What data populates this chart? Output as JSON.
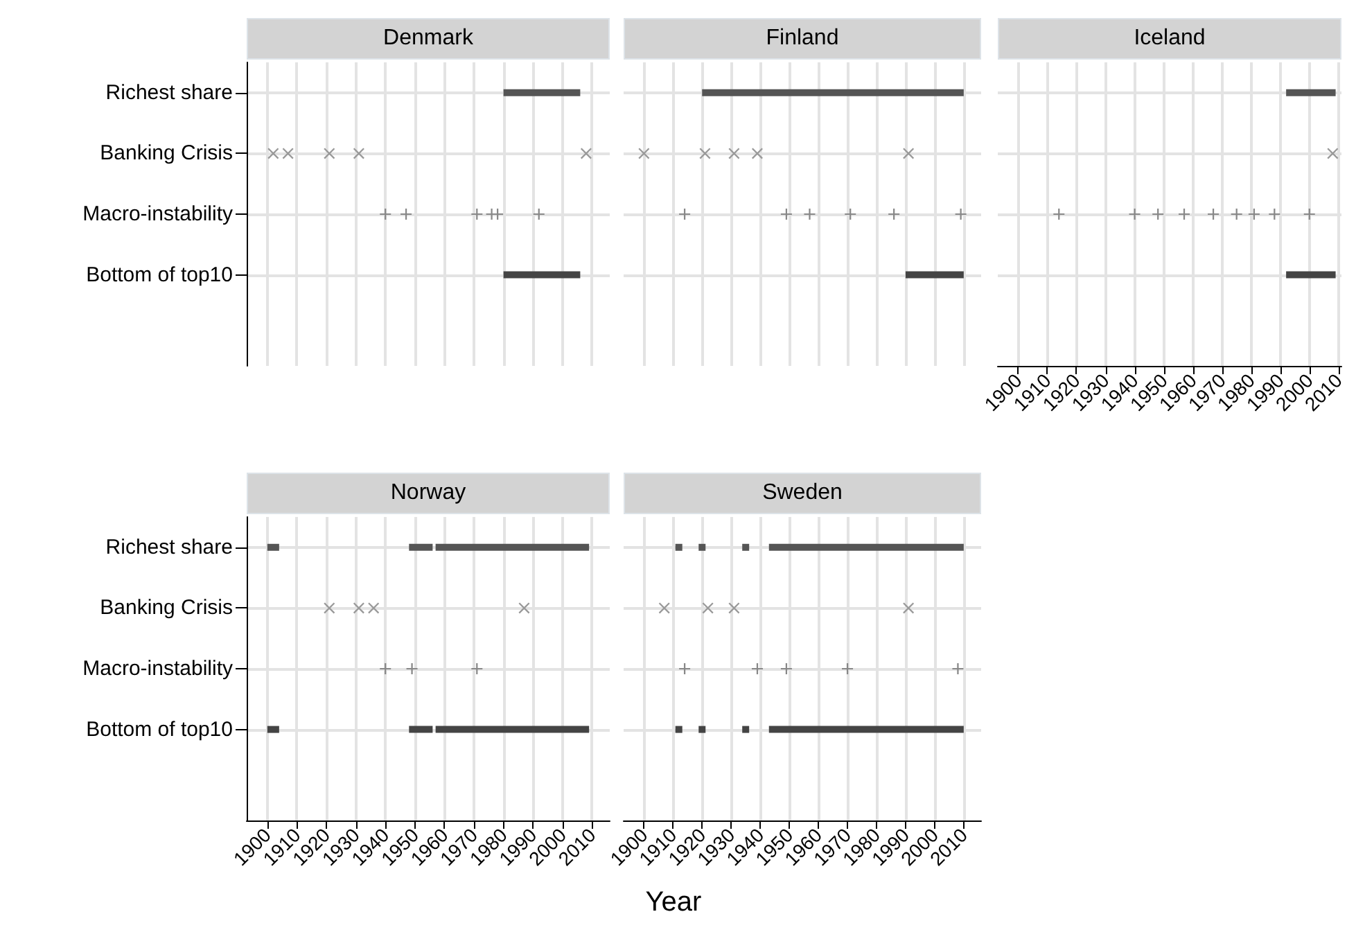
{
  "chart_data": [
    {
      "type": "line",
      "title": "Denmark",
      "orientation": "horizontal",
      "categories": [
        "Richest share",
        "Banking Crisis",
        "Macro-instability",
        "Bottom of top10",
        null
      ],
      "xlim": [
        1893,
        2016
      ],
      "xticks": [
        1900,
        1910,
        1920,
        1930,
        1940,
        1950,
        1960,
        1970,
        1980,
        1990,
        2000,
        2010
      ],
      "grid": true,
      "tick_labels": "y",
      "series": [
        {
          "color": "#555555",
          "x": [
            "Richest share",
            "Richest share"
          ],
          "values": [
            1980,
            2006
          ]
        },
        {
          "type": "scatter",
          "marker": "x",
          "color": "#999999",
          "x": [
            "Banking Crisis",
            "Banking Crisis",
            "Banking Crisis",
            "Banking Crisis",
            "Banking Crisis"
          ],
          "values": [
            1902,
            1907,
            1921,
            1931,
            2008
          ]
        },
        {
          "type": "scatter",
          "marker": "cross",
          "color": "#888888",
          "x": [
            "Macro-instability",
            "Macro-instability",
            "Macro-instability",
            "Macro-instability",
            "Macro-instability",
            "Macro-instability"
          ],
          "values": [
            1940,
            1947,
            1971,
            1976,
            1978,
            1992
          ]
        },
        {
          "color": "#444444",
          "x": [
            "Bottom of top10",
            "Bottom of top10"
          ],
          "values": [
            1980,
            2006
          ]
        }
      ]
    },
    {
      "type": "line",
      "title": "Finland",
      "orientation": "horizontal",
      "categories": [
        "Richest share",
        "Banking Crisis",
        "Macro-instability",
        "Bottom of top10",
        null
      ],
      "xlim": [
        1893,
        2016
      ],
      "xticks": [
        1900,
        1910,
        1920,
        1930,
        1940,
        1950,
        1960,
        1970,
        1980,
        1990,
        2000,
        2010
      ],
      "grid": true,
      "tick_labels": false,
      "series": [
        {
          "color": "#555555",
          "x": [
            "Richest share",
            "Richest share"
          ],
          "values": [
            1920,
            2010
          ]
        },
        {
          "type": "scatter",
          "marker": "x",
          "color": "#999999",
          "x": [
            "Banking Crisis",
            "Banking Crisis",
            "Banking Crisis",
            "Banking Crisis",
            "Banking Crisis"
          ],
          "values": [
            1900,
            1921,
            1931,
            1939,
            1991
          ]
        },
        {
          "type": "scatter",
          "marker": "cross",
          "color": "#888888",
          "x": [
            "Macro-instability",
            "Macro-instability",
            "Macro-instability",
            "Macro-instability",
            "Macro-instability",
            "Macro-instability"
          ],
          "values": [
            1914,
            1949,
            1957,
            1971,
            1986,
            2009
          ]
        },
        {
          "color": "#444444",
          "x": [
            "Bottom of top10",
            "Bottom of top10"
          ],
          "values": [
            1990,
            2010
          ]
        }
      ]
    },
    {
      "type": "line",
      "title": "Iceland",
      "orientation": "horizontal",
      "categories": [
        "Richest share",
        "Banking Crisis",
        "Macro-instability",
        "Bottom of top10",
        null
      ],
      "xlim": [
        1893,
        2011
      ],
      "xticks": [
        1900,
        1910,
        1920,
        1930,
        1940,
        1950,
        1960,
        1970,
        1980,
        1990,
        2000,
        2010
      ],
      "grid": true,
      "tick_labels": "x",
      "series": [
        {
          "color": "#555555",
          "x": [
            "Richest share",
            "Richest share"
          ],
          "values": [
            1992,
            2009
          ]
        },
        {
          "type": "scatter",
          "marker": "x",
          "color": "#999999",
          "x": [
            "Banking Crisis"
          ],
          "values": [
            2008
          ]
        },
        {
          "type": "scatter",
          "marker": "cross",
          "color": "#888888",
          "x": [
            "Macro-instability",
            "Macro-instability",
            "Macro-instability",
            "Macro-instability",
            "Macro-instability",
            "Macro-instability",
            "Macro-instability",
            "Macro-instability",
            "Macro-instability"
          ],
          "values": [
            1914,
            1940,
            1948,
            1957,
            1967,
            1975,
            1981,
            1988,
            2000
          ]
        },
        {
          "color": "#444444",
          "x": [
            "Bottom of top10",
            "Bottom of top10"
          ],
          "values": [
            1992,
            2009
          ]
        }
      ]
    },
    {
      "type": "line",
      "title": "Norway",
      "xlabel": "Year",
      "orientation": "horizontal",
      "categories": [
        "Richest share",
        "Banking Crisis",
        "Macro-instability",
        "Bottom of top10",
        null
      ],
      "xlim": [
        1893,
        2016
      ],
      "xticks": [
        1900,
        1910,
        1920,
        1930,
        1940,
        1950,
        1960,
        1970,
        1980,
        1990,
        2000,
        2010
      ],
      "grid": true,
      "series": [
        {
          "color": "#555555",
          "x": [
            "Richest share",
            "Richest share"
          ],
          "values": [
            1900,
            1904
          ]
        },
        {
          "color": "#555555",
          "x": [
            "Richest share",
            "Richest share"
          ],
          "values": [
            1948,
            1956
          ]
        },
        {
          "color": "#555555",
          "x": [
            "Richest share",
            "Richest share"
          ],
          "values": [
            1957,
            2009
          ]
        },
        {
          "type": "scatter",
          "marker": "x",
          "color": "#999999",
          "x": [
            "Banking Crisis",
            "Banking Crisis",
            "Banking Crisis",
            "Banking Crisis"
          ],
          "values": [
            1921,
            1931,
            1936,
            1987
          ]
        },
        {
          "type": "scatter",
          "marker": "cross",
          "color": "#888888",
          "x": [
            "Macro-instability",
            "Macro-instability",
            "Macro-instability"
          ],
          "values": [
            1940,
            1949,
            1971
          ]
        },
        {
          "color": "#444444",
          "x": [
            "Bottom of top10",
            "Bottom of top10"
          ],
          "values": [
            1900,
            1904
          ]
        },
        {
          "color": "#444444",
          "x": [
            "Bottom of top10",
            "Bottom of top10"
          ],
          "values": [
            1948,
            1956
          ]
        },
        {
          "color": "#444444",
          "x": [
            "Bottom of top10",
            "Bottom of top10"
          ],
          "values": [
            1957,
            2009
          ]
        }
      ]
    },
    {
      "type": "line",
      "title": "Sweden",
      "orientation": "horizontal",
      "categories": [
        "Richest share",
        "Banking Crisis",
        "Macro-instability",
        "Bottom of top10",
        null
      ],
      "xlim": [
        1893,
        2016
      ],
      "xticks": [
        1900,
        1910,
        1920,
        1930,
        1940,
        1950,
        1960,
        1970,
        1980,
        1990,
        2000,
        2010
      ],
      "grid": true,
      "tick_labels": "x",
      "series": [
        {
          "type": "scatter",
          "marker": "square",
          "color": "#555555",
          "x": [
            "Richest share",
            "Richest share",
            "Richest share"
          ],
          "values": [
            1912,
            1920,
            1935
          ]
        },
        {
          "color": "#555555",
          "x": [
            "Richest share",
            "Richest share"
          ],
          "values": [
            1943,
            2010
          ]
        },
        {
          "type": "scatter",
          "marker": "x",
          "color": "#999999",
          "x": [
            "Banking Crisis",
            "Banking Crisis",
            "Banking Crisis",
            "Banking Crisis"
          ],
          "values": [
            1907,
            1922,
            1931,
            1991
          ]
        },
        {
          "type": "scatter",
          "marker": "cross",
          "color": "#888888",
          "x": [
            "Macro-instability",
            "Macro-instability",
            "Macro-instability",
            "Macro-instability",
            "Macro-instability"
          ],
          "values": [
            1914,
            1939,
            1949,
            1970,
            2008
          ]
        },
        {
          "type": "scatter",
          "marker": "square",
          "color": "#444444",
          "x": [
            "Bottom of top10",
            "Bottom of top10",
            "Bottom of top10"
          ],
          "values": [
            1912,
            1920,
            1935
          ]
        },
        {
          "color": "#444444",
          "x": [
            "Bottom of top10",
            "Bottom of top10"
          ],
          "values": [
            1943,
            2010
          ]
        }
      ]
    }
  ]
}
